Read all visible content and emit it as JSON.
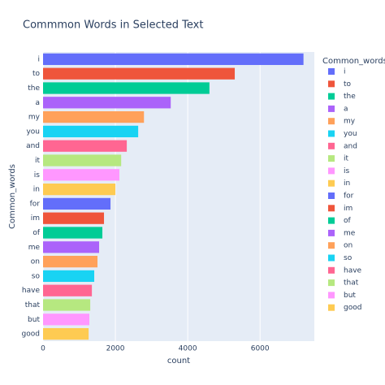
{
  "chart_data": {
    "type": "bar",
    "orientation": "horizontal",
    "title": "Commmon Words in Selected Text",
    "x_label": "count",
    "y_label": "Common_words",
    "legend_title": "Common_words",
    "categories": [
      "i",
      "to",
      "the",
      "a",
      "my",
      "you",
      "and",
      "it",
      "is",
      "in",
      "for",
      "im",
      "of",
      "me",
      "on",
      "so",
      "have",
      "that",
      "but",
      "good"
    ],
    "values": [
      7200,
      5300,
      4600,
      3530,
      2790,
      2630,
      2315,
      2160,
      2110,
      2000,
      1865,
      1685,
      1640,
      1550,
      1505,
      1415,
      1350,
      1305,
      1280,
      1260
    ],
    "colors": [
      "#636efa",
      "#ef553b",
      "#00cc96",
      "#ab63fa",
      "#ffa15a",
      "#19d3f3",
      "#ff6692",
      "#b6e880",
      "#ff97ff",
      "#fecb52",
      "#636efa",
      "#ef553b",
      "#00cc96",
      "#ab63fa",
      "#ffa15a",
      "#19d3f3",
      "#ff6692",
      "#b6e880",
      "#ff97ff",
      "#fecb52"
    ],
    "xlim": [
      0,
      7500
    ],
    "xticks": [
      0,
      2000,
      4000,
      6000
    ],
    "grid": true
  }
}
